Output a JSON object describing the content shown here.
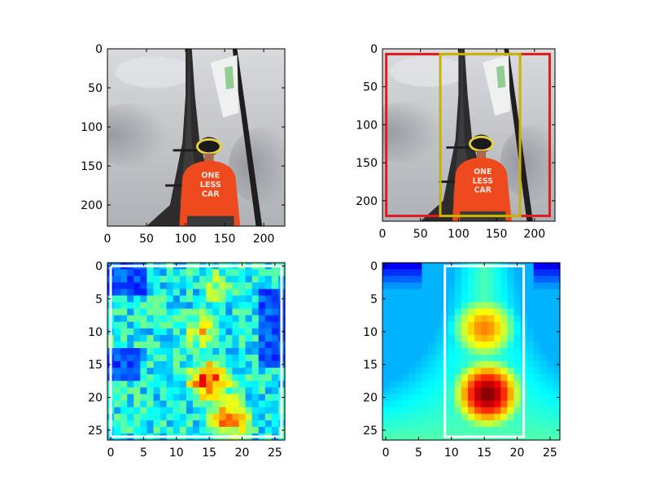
{
  "chart_data": [
    {
      "type": "image",
      "panel": "top-left",
      "description_of_content": "photo",
      "xlim": [
        0,
        227
      ],
      "ylim": [
        227,
        0
      ],
      "xticks": [
        0,
        50,
        100,
        150,
        200
      ],
      "yticks": [
        0,
        50,
        100,
        150,
        200
      ],
      "overlay_text": [
        "ONE",
        "LESS",
        "CAR"
      ],
      "boxes": []
    },
    {
      "type": "image",
      "panel": "top-right",
      "description_of_content": "photo",
      "xlim": [
        0,
        227
      ],
      "ylim": [
        227,
        0
      ],
      "xticks": [
        0,
        50,
        100,
        150,
        200
      ],
      "yticks": [
        0,
        50,
        100,
        150,
        200
      ],
      "overlay_text": [
        "ONE",
        "LESS",
        "CAR"
      ],
      "boxes": [
        {
          "color": "#e31a1c",
          "x0": 5,
          "y0": 7,
          "x1": 220,
          "y1": 220
        },
        {
          "color": "#c8b400",
          "x0": 76,
          "y0": 7,
          "x1": 181,
          "y1": 220
        }
      ]
    },
    {
      "type": "heatmap",
      "panel": "bottom-left",
      "colormap": "jet",
      "xlim": [
        -0.5,
        26.5
      ],
      "ylim": [
        26.5,
        -0.5
      ],
      "xticks": [
        0,
        5,
        10,
        15,
        20,
        25
      ],
      "yticks": [
        0,
        5,
        10,
        15,
        20,
        25
      ],
      "hotspots": [
        {
          "x": 15,
          "y": 17.5,
          "value": 0.95
        },
        {
          "x": 18,
          "y": 23,
          "value": 0.85
        },
        {
          "x": 14,
          "y": 10,
          "value": 0.65
        },
        {
          "x": 16,
          "y": 3,
          "value": 0.55
        }
      ],
      "boxes": [
        {
          "color": "#ffffff",
          "x0": 0,
          "y0": 0,
          "x1": 26,
          "y1": 26
        }
      ]
    },
    {
      "type": "heatmap",
      "panel": "bottom-right",
      "colormap": "jet",
      "xlim": [
        -0.5,
        26.5
      ],
      "ylim": [
        26.5,
        -0.5
      ],
      "xticks": [
        0,
        5,
        10,
        15,
        20,
        25
      ],
      "yticks": [
        0,
        5,
        10,
        15,
        20,
        25
      ],
      "hotspots": [
        {
          "x": 15.5,
          "y": 19.5,
          "value": 1.0
        },
        {
          "x": 15,
          "y": 9.5,
          "value": 0.75
        }
      ],
      "boxes": [
        {
          "color": "#ffffff",
          "x0": 9,
          "y0": 0,
          "x1": 21,
          "y1": 26
        }
      ]
    }
  ]
}
